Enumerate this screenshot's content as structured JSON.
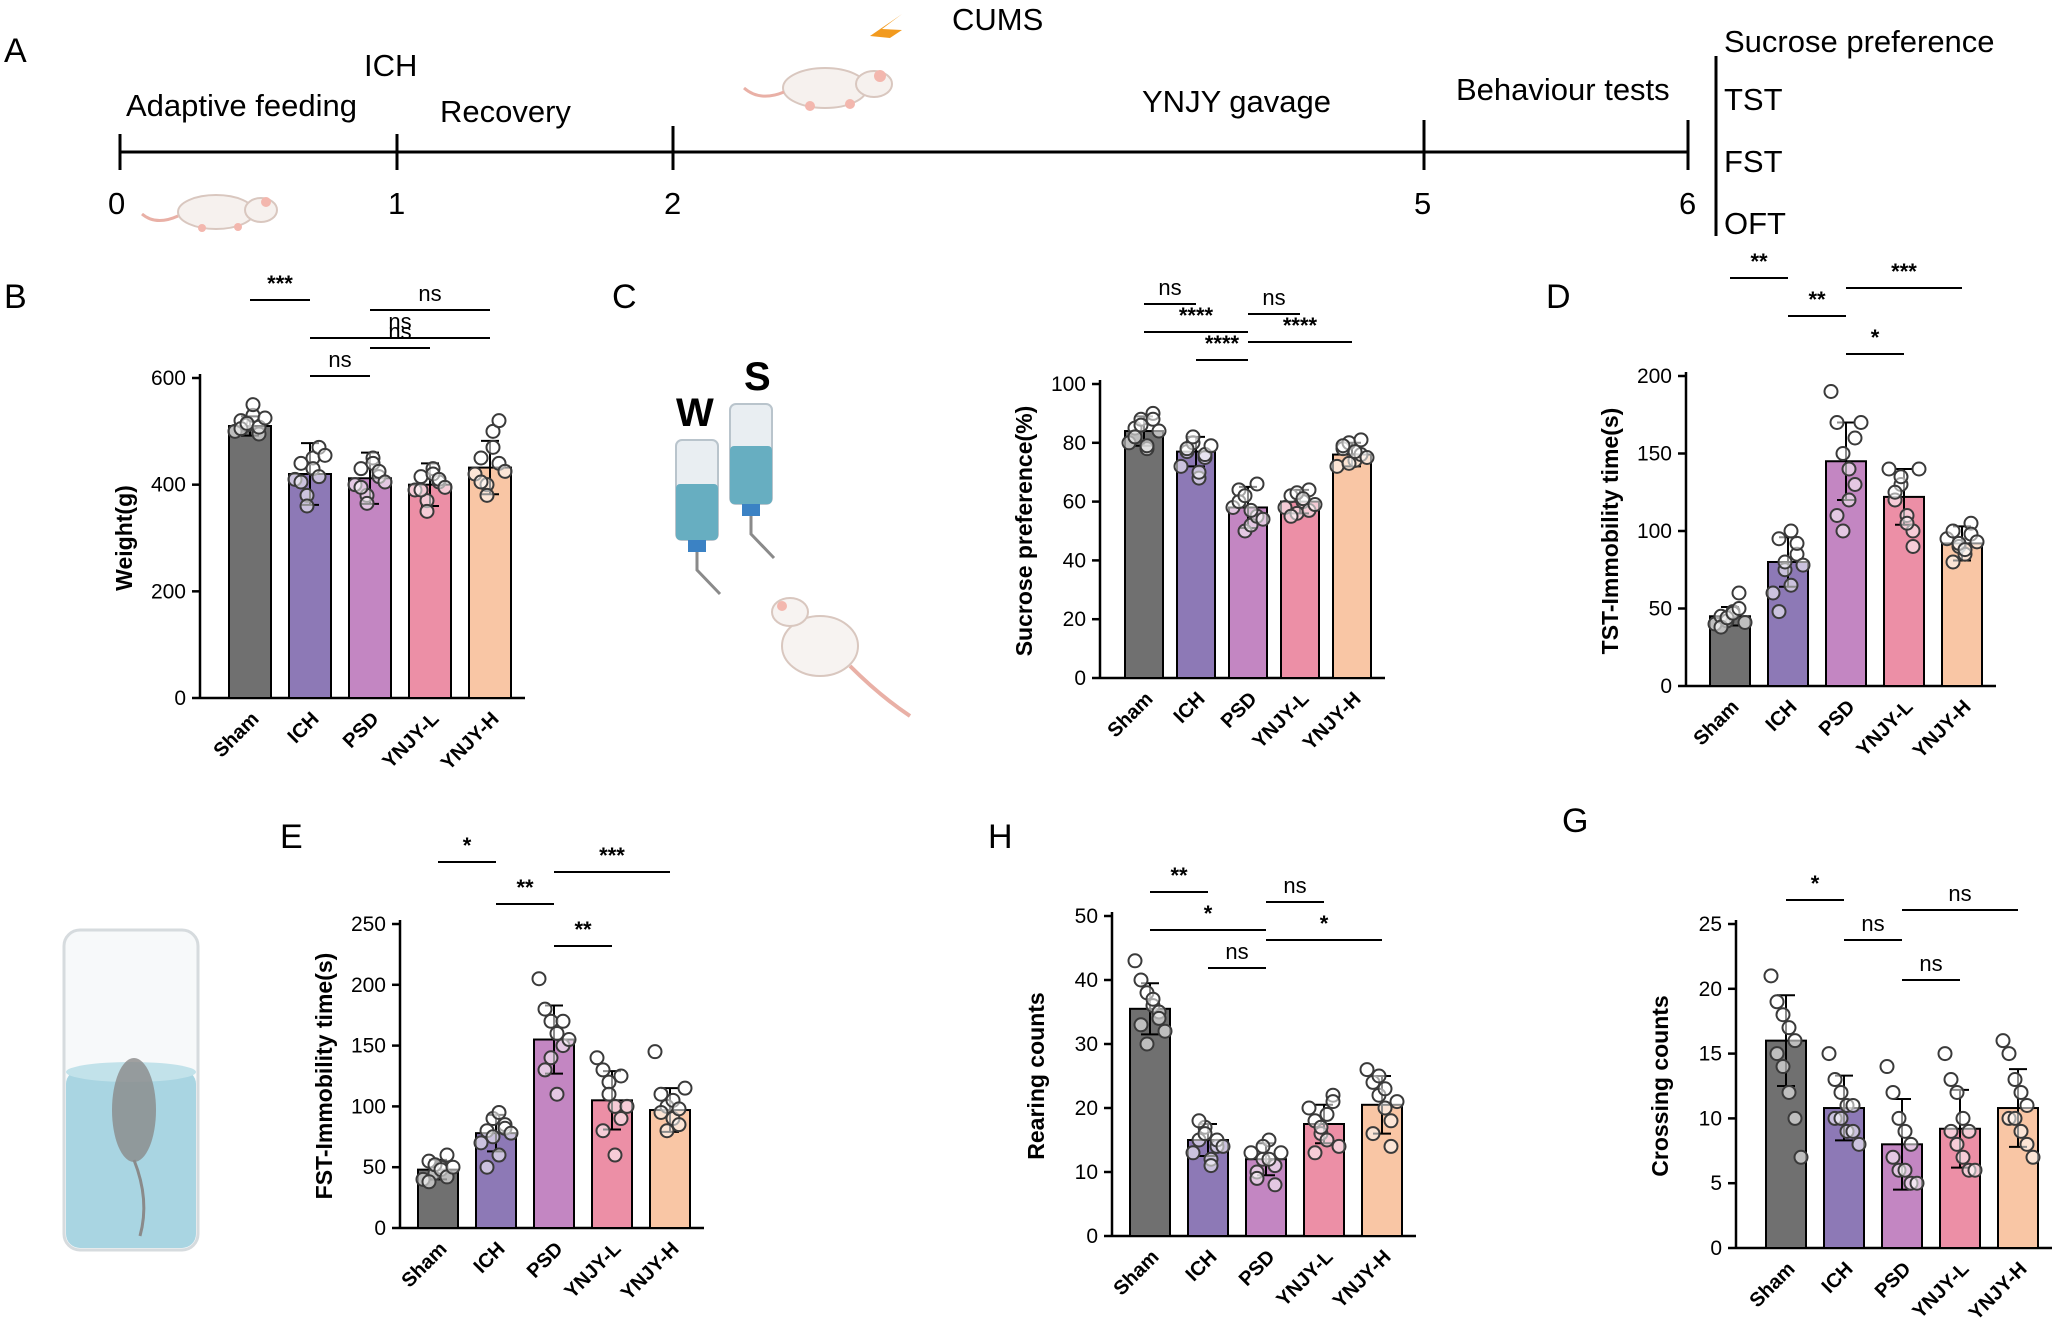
{
  "panel_labels": [
    "A",
    "B",
    "C",
    "D",
    "E",
    "H",
    "G"
  ],
  "timeline": {
    "ticks": [
      "0",
      "1",
      "2",
      "5",
      "6"
    ],
    "adaptive": "Adaptive feeding",
    "ich": "ICH",
    "recovery": "Recovery",
    "cums": "CUMS",
    "gavage": "YNJY gavage",
    "behaviour": "Behaviour tests",
    "tests": [
      "Sucrose preference",
      "TST",
      "FST",
      "OFT"
    ]
  },
  "bottle_labels": {
    "water": "W",
    "sucrose": "S"
  },
  "colors": {
    "Sham": "#707070",
    "ICH": "#8d79b6",
    "PSD": "#c386c2",
    "YNJY-L": "#ec8fa6",
    "YNJY-H": "#f9c6a5"
  },
  "chart_data": [
    {
      "id": "B",
      "type": "bar",
      "categories": [
        "Sham",
        "ICH",
        "PSD",
        "YNJY-L",
        "YNJY-H"
      ],
      "values": [
        510,
        420,
        412,
        400,
        432
      ],
      "errors": [
        18,
        58,
        48,
        40,
        50
      ],
      "points": [
        [
          500,
          520,
          512,
          530,
          495,
          505,
          515,
          550,
          508,
          525
        ],
        [
          410,
          440,
          380,
          450,
          470,
          405,
          360,
          430,
          415,
          455
        ],
        [
          400,
          430,
          380,
          450,
          415,
          395,
          365,
          440,
          425,
          405
        ],
        [
          390,
          415,
          370,
          430,
          405,
          390,
          350,
          420,
          410,
          395
        ],
        [
          420,
          450,
          400,
          470,
          440,
          405,
          380,
          500,
          520,
          425
        ]
      ],
      "ylabel": "Weight(g)",
      "ylim": [
        0,
        600
      ],
      "yticks": [
        0,
        200,
        400,
        600
      ],
      "significance": [
        {
          "from": "Sham",
          "to": "ICH",
          "label": "***"
        },
        {
          "from": "ICH",
          "to": "YNJY-H",
          "label": "ns"
        },
        {
          "from": "ICH",
          "to": "PSD",
          "label": "ns"
        },
        {
          "from": "PSD",
          "to": "YNJY-H",
          "label": "ns"
        },
        {
          "from": "PSD",
          "to": "YNJY-L",
          "label": "ns"
        }
      ]
    },
    {
      "id": "C",
      "type": "bar",
      "categories": [
        "Sham",
        "ICH",
        "PSD",
        "YNJY-L",
        "YNJY-H"
      ],
      "values": [
        84,
        77,
        58,
        60,
        76
      ],
      "errors": [
        5,
        5,
        7,
        4,
        4
      ],
      "points": [
        [
          80,
          85,
          88,
          78,
          90,
          82,
          86,
          79,
          88,
          84
        ],
        [
          72,
          77,
          80,
          68,
          75,
          78,
          82,
          70,
          76,
          79
        ],
        [
          58,
          64,
          50,
          52,
          55,
          60,
          62,
          57,
          66,
          54
        ],
        [
          58,
          62,
          56,
          60,
          64,
          55,
          63,
          61,
          57,
          59
        ],
        [
          72,
          78,
          80,
          74,
          76,
          79,
          73,
          77,
          81,
          75
        ]
      ],
      "ylabel": "Sucrose preference(%)",
      "ylim": [
        0,
        100
      ],
      "yticks": [
        0,
        20,
        40,
        60,
        80,
        100
      ],
      "significance": [
        {
          "from": "Sham",
          "to": "ICH",
          "label": "ns"
        },
        {
          "from": "Sham",
          "to": "PSD",
          "label": "****"
        },
        {
          "from": "ICH",
          "to": "PSD",
          "label": "****"
        },
        {
          "from": "PSD",
          "to": "YNJY-L",
          "label": "ns"
        },
        {
          "from": "PSD",
          "to": "YNJY-H",
          "label": "****"
        }
      ]
    },
    {
      "id": "D",
      "type": "bar",
      "categories": [
        "Sham",
        "ICH",
        "PSD",
        "YNJY-L",
        "YNJY-H"
      ],
      "values": [
        45,
        80,
        145,
        122,
        92
      ],
      "errors": [
        6,
        16,
        25,
        18,
        11
      ],
      "points": [
        [
          40,
          45,
          42,
          48,
          60,
          38,
          44,
          47,
          50,
          41
        ],
        [
          60,
          95,
          75,
          100,
          85,
          48,
          80,
          65,
          92,
          78
        ],
        [
          190,
          170,
          150,
          140,
          160,
          110,
          100,
          120,
          130,
          170
        ],
        [
          140,
          120,
          130,
          110,
          100,
          125,
          135,
          105,
          90,
          140
        ],
        [
          95,
          100,
          90,
          85,
          105,
          80,
          92,
          88,
          98,
          93
        ]
      ],
      "ylabel": "TST-Immobility time(s)",
      "ylim": [
        0,
        200
      ],
      "yticks": [
        0,
        50,
        100,
        150,
        200
      ],
      "significance": [
        {
          "from": "Sham",
          "to": "ICH",
          "label": "**"
        },
        {
          "from": "ICH",
          "to": "PSD",
          "label": "**"
        },
        {
          "from": "PSD",
          "to": "YNJY-L",
          "label": "*"
        },
        {
          "from": "PSD",
          "to": "YNJY-H",
          "label": "***"
        }
      ]
    },
    {
      "id": "E",
      "type": "bar",
      "categories": [
        "Sham",
        "ICH",
        "PSD",
        "YNJY-L",
        "YNJY-H"
      ],
      "values": [
        48,
        78,
        155,
        105,
        97
      ],
      "errors": [
        8,
        15,
        28,
        24,
        18
      ],
      "points": [
        [
          40,
          55,
          45,
          50,
          60,
          38,
          52,
          48,
          42,
          50
        ],
        [
          70,
          80,
          90,
          60,
          85,
          50,
          75,
          95,
          82,
          78
        ],
        [
          205,
          180,
          170,
          160,
          150,
          130,
          140,
          110,
          170,
          155
        ],
        [
          140,
          130,
          120,
          100,
          90,
          80,
          110,
          60,
          125,
          100
        ],
        [
          145,
          110,
          100,
          90,
          85,
          95,
          80,
          105,
          98,
          115
        ]
      ],
      "ylabel": "FST-Immobility time(s)",
      "ylim": [
        0,
        250
      ],
      "yticks": [
        0,
        50,
        100,
        150,
        200,
        250
      ],
      "significance": [
        {
          "from": "Sham",
          "to": "ICH",
          "label": "*"
        },
        {
          "from": "ICH",
          "to": "PSD",
          "label": "**"
        },
        {
          "from": "PSD",
          "to": "YNJY-L",
          "label": "**"
        },
        {
          "from": "PSD",
          "to": "YNJY-H",
          "label": "***"
        }
      ]
    },
    {
      "id": "H",
      "type": "bar",
      "categories": [
        "Sham",
        "ICH",
        "PSD",
        "YNJY-L",
        "YNJY-H"
      ],
      "values": [
        35.5,
        15,
        12,
        17.5,
        20.5
      ],
      "errors": [
        4,
        2.5,
        2.5,
        3,
        4.5
      ],
      "points": [
        [
          43,
          40,
          38,
          36,
          35,
          33,
          30,
          37,
          34,
          32
        ],
        [
          13,
          15,
          17,
          12,
          14,
          18,
          16,
          11,
          15,
          14
        ],
        [
          13,
          10,
          12,
          15,
          11,
          9,
          14,
          12,
          8,
          13
        ],
        [
          20,
          18,
          16,
          15,
          22,
          13,
          17,
          19,
          21,
          14
        ],
        [
          26,
          24,
          22,
          20,
          18,
          16,
          25,
          23,
          14,
          21
        ]
      ],
      "ylabel": "Rearing counts",
      "ylim": [
        0,
        50
      ],
      "yticks": [
        0,
        10,
        20,
        30,
        40,
        50
      ],
      "significance": [
        {
          "from": "Sham",
          "to": "ICH",
          "label": "**"
        },
        {
          "from": "Sham",
          "to": "PSD",
          "label": "*"
        },
        {
          "from": "ICH",
          "to": "PSD",
          "label": "ns"
        },
        {
          "from": "PSD",
          "to": "YNJY-L",
          "label": "ns"
        },
        {
          "from": "PSD",
          "to": "YNJY-H",
          "label": "*"
        }
      ]
    },
    {
      "id": "G",
      "type": "bar",
      "categories": [
        "Sham",
        "ICH",
        "PSD",
        "YNJY-L",
        "YNJY-H"
      ],
      "values": [
        16,
        10.8,
        8,
        9.2,
        10.8
      ],
      "errors": [
        3.5,
        2.5,
        3.5,
        3,
        3
      ],
      "points": [
        [
          21,
          19,
          18,
          17,
          16,
          15,
          14,
          12,
          10,
          7
        ],
        [
          15,
          13,
          12,
          11,
          11,
          10,
          10,
          9,
          9,
          8
        ],
        [
          14,
          12,
          10,
          9,
          8,
          7,
          6,
          6,
          5,
          5
        ],
        [
          15,
          13,
          12,
          10,
          9,
          9,
          8,
          7,
          6,
          6
        ],
        [
          16,
          15,
          13,
          12,
          11,
          10,
          10,
          9,
          8,
          7
        ]
      ],
      "ylabel": "Crossing counts",
      "ylim": [
        0,
        25
      ],
      "yticks": [
        0,
        5,
        10,
        15,
        20,
        25
      ],
      "significance": [
        {
          "from": "Sham",
          "to": "ICH",
          "label": "*"
        },
        {
          "from": "ICH",
          "to": "PSD",
          "label": "ns"
        },
        {
          "from": "PSD",
          "to": "YNJY-L",
          "label": "ns"
        },
        {
          "from": "PSD",
          "to": "YNJY-H",
          "label": "ns"
        }
      ]
    }
  ]
}
